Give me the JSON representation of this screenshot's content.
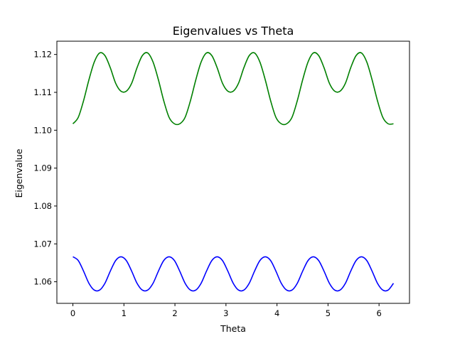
{
  "chart_data": {
    "type": "line",
    "title": "Eigenvalues vs Theta",
    "xlabel": "Theta",
    "ylabel": "Eigenvalue",
    "xlim": [
      -0.314,
      6.597
    ],
    "ylim": [
      1.0543,
      1.1235
    ],
    "xticks": [
      "0",
      "1",
      "2",
      "3",
      "4",
      "5",
      "6"
    ],
    "yticks": [
      "1.06",
      "1.07",
      "1.08",
      "1.09",
      "1.10",
      "1.11",
      "1.12"
    ],
    "grid": false,
    "legend": "none",
    "series": [
      {
        "color": "#008000",
        "x": [
          0.0,
          0.105,
          0.209,
          0.314,
          0.419,
          0.524,
          0.628,
          0.733,
          0.838,
          0.942,
          1.047,
          1.152,
          1.257,
          1.361,
          1.466,
          1.571,
          1.676,
          1.78,
          1.885,
          1.99,
          2.094,
          2.199,
          2.304,
          2.409,
          2.513,
          2.618,
          2.723,
          2.827,
          2.932,
          3.037,
          3.142,
          3.246,
          3.351,
          3.456,
          3.56,
          3.665,
          3.77,
          3.875,
          3.979,
          4.084,
          4.189,
          4.294,
          4.398,
          4.503,
          4.608,
          4.712,
          4.817,
          4.922,
          5.027,
          5.131,
          5.236,
          5.341,
          5.445,
          5.55,
          5.655,
          5.76,
          5.864,
          5.969,
          6.074,
          6.178,
          6.283
        ],
        "values": [
          1.1017,
          1.1034,
          1.1078,
          1.1133,
          1.118,
          1.1204,
          1.1197,
          1.1165,
          1.1124,
          1.1103,
          1.1103,
          1.1124,
          1.1165,
          1.1197,
          1.1204,
          1.118,
          1.1133,
          1.1078,
          1.1034,
          1.1017,
          1.1017,
          1.1034,
          1.1078,
          1.1133,
          1.118,
          1.1204,
          1.1197,
          1.1165,
          1.1124,
          1.1103,
          1.1103,
          1.1124,
          1.1165,
          1.1197,
          1.1204,
          1.118,
          1.1133,
          1.1078,
          1.1034,
          1.1017,
          1.1017,
          1.1034,
          1.1078,
          1.1133,
          1.118,
          1.1204,
          1.1197,
          1.1165,
          1.1124,
          1.1103,
          1.1103,
          1.1124,
          1.1165,
          1.1197,
          1.1204,
          1.118,
          1.1133,
          1.1078,
          1.1034,
          1.1017,
          1.1017
        ]
      },
      {
        "color": "#0000ff",
        "x": [
          0.0,
          0.105,
          0.209,
          0.314,
          0.419,
          0.524,
          0.628,
          0.733,
          0.838,
          0.942,
          1.047,
          1.152,
          1.257,
          1.361,
          1.466,
          1.571,
          1.676,
          1.78,
          1.885,
          1.99,
          2.094,
          2.199,
          2.304,
          2.409,
          2.513,
          2.618,
          2.723,
          2.827,
          2.932,
          3.037,
          3.142,
          3.246,
          3.351,
          3.456,
          3.56,
          3.665,
          3.77,
          3.875,
          3.979,
          4.084,
          4.189,
          4.294,
          4.398,
          4.503,
          4.608,
          4.712,
          4.817,
          4.922,
          5.027,
          5.131,
          5.236,
          5.341,
          5.445,
          5.55,
          5.655,
          5.76,
          5.864,
          5.969,
          6.074,
          6.178,
          6.283
        ],
        "values": [
          1.0666,
          1.0656,
          1.0628,
          1.0596,
          1.0578,
          1.0578,
          1.0596,
          1.0628,
          1.0656,
          1.0666,
          1.0656,
          1.0628,
          1.0596,
          1.0578,
          1.0578,
          1.0596,
          1.0628,
          1.0656,
          1.0666,
          1.0656,
          1.0628,
          1.0596,
          1.0578,
          1.0578,
          1.0596,
          1.0628,
          1.0656,
          1.0666,
          1.0656,
          1.0628,
          1.0596,
          1.0578,
          1.0578,
          1.0596,
          1.0628,
          1.0656,
          1.0666,
          1.0656,
          1.0628,
          1.0596,
          1.0578,
          1.0578,
          1.0596,
          1.0628,
          1.0656,
          1.0666,
          1.0656,
          1.0628,
          1.0596,
          1.0578,
          1.0578,
          1.0596,
          1.0628,
          1.0656,
          1.0666,
          1.0656,
          1.0628,
          1.0596,
          1.0578,
          1.0578,
          1.0596
        ]
      }
    ]
  }
}
